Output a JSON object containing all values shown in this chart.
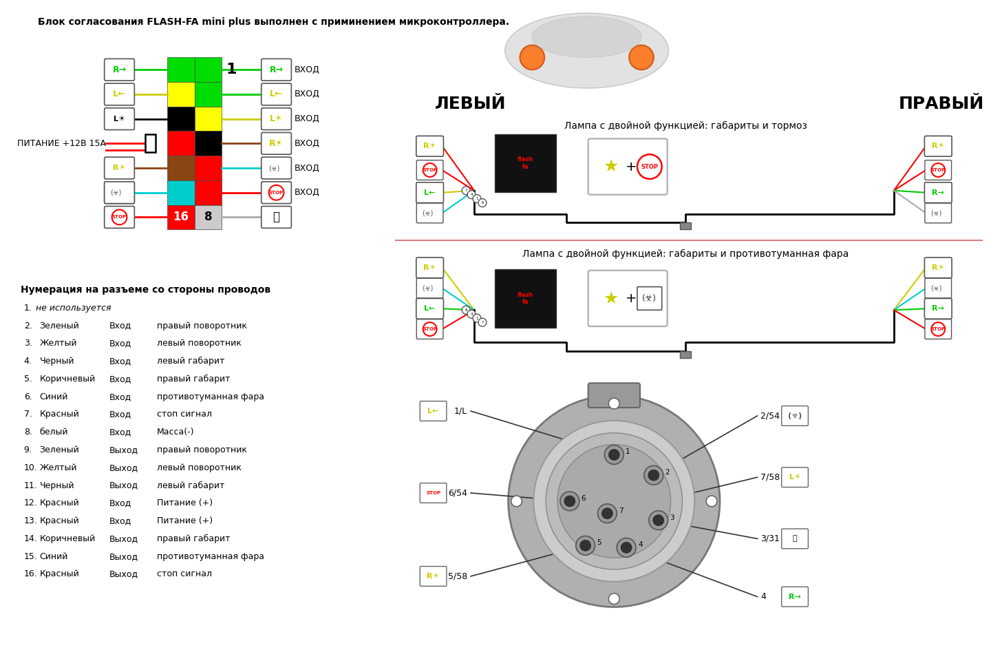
{
  "title": "Блок согласования FLASH-FA mini plus выполнен с приминением микроконтроллера.",
  "bg_color": "#ffffff",
  "numbering_title": "Нумерация на разъеме со стороны проводов",
  "levy": "ЛЕВЫЙ",
  "pravy": "ПРАВЫЙ",
  "lamp1_title": "Лампа с двойной функцией: габариты и тормоз",
  "lamp2_title": "Лампа с двойной функцией: габариты и противотуманная фара",
  "connector_labels": [
    "1/L",
    "2/54 G",
    "3/31",
    "4",
    "5/58",
    "6/54",
    "7/58"
  ],
  "pin_entries": [
    [
      "2.",
      "Зеленый",
      "Вход",
      "правый поворотник"
    ],
    [
      "3.",
      "Желтый",
      "Вход",
      "левый поворотник"
    ],
    [
      "4.",
      "Черный",
      "Вход",
      "левый габарит"
    ],
    [
      "5.",
      "Коричневый",
      "Вход",
      "правый габарит"
    ],
    [
      "6.",
      "Синий",
      "Вход",
      "противотуманная фара"
    ],
    [
      "7.",
      "Красный",
      "Вход",
      "стоп сигнал"
    ],
    [
      "8.",
      "белый",
      "Вход",
      "Масса(-)"
    ],
    [
      "9.",
      "Зеленый",
      "Выход",
      "правый поворотник"
    ],
    [
      "10.",
      "Желтый",
      "Выход",
      "левый поворотник"
    ],
    [
      "11.",
      "Черный",
      "Выход",
      "левый габарит"
    ],
    [
      "12.",
      "Красный",
      "Вход",
      "Питание (+)"
    ],
    [
      "13.",
      "Красный",
      "Вход",
      "Питание (+)"
    ],
    [
      "14.",
      "Коричневый",
      "Выход",
      "правый габарит"
    ],
    [
      "15.",
      "Синий",
      "Выход",
      "противотуманная фара"
    ],
    [
      "16.",
      "Красный",
      "Выход",
      "стоп сигнал"
    ]
  ],
  "row_colors_left": [
    "#00dd00",
    "#ffff00",
    "#000000",
    "#ff0000",
    "#8B4513",
    "#00cccc",
    "#ff0000"
  ],
  "row_colors_right": [
    "#00dd00",
    "#00dd00",
    "#ffff00",
    "#000000",
    "#ff0000",
    "#ff0000",
    "#cccccc"
  ]
}
